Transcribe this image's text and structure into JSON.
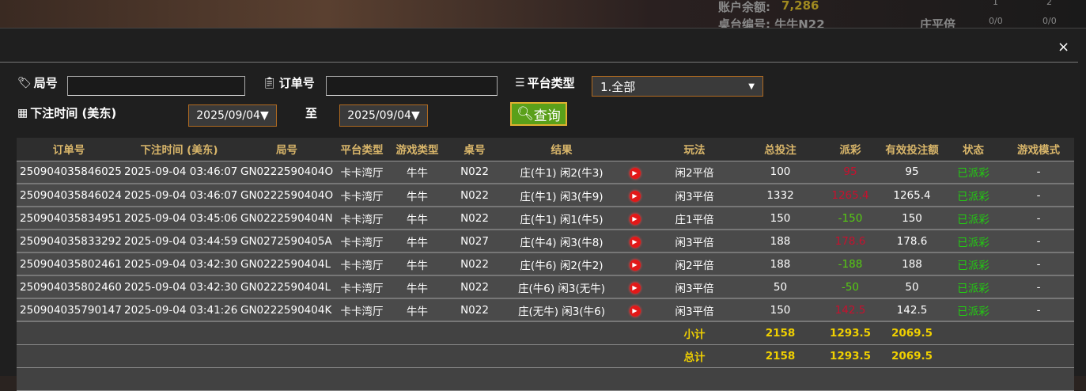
{
  "background": {
    "balance_label": "账户余额:",
    "balance": "7,286",
    "table_label": "桌台编号: 牛牛N22",
    "side_label": "庄平倍",
    "side_vals": [
      "0/0",
      "0/0"
    ],
    "col_nums": [
      "1",
      "2"
    ]
  },
  "modal": {
    "close": "×"
  },
  "filters": {
    "round_label": "局号",
    "round_value": "",
    "order_label": "订单号",
    "order_value": "",
    "platform_label": "平台类型",
    "platform_value": "1.全部",
    "time_label": "下注时间 (美东)",
    "date_from": "2025/09/04▼",
    "to_label": "至",
    "date_to": "2025/09/04▼",
    "query_label": "查询"
  },
  "table": {
    "headers": [
      "订单号",
      "下注时间 (美东)",
      "局号",
      "平台类型",
      "游戏类型",
      "桌号",
      "结果",
      "",
      "玩法",
      "总投注",
      "派彩",
      "有效投注额",
      "状态",
      "游戏模式"
    ],
    "rows": [
      {
        "order": "250904035846025",
        "time": "2025-09-04 03:46:07",
        "round": "GN0222590404O",
        "platform": "卡卡湾厅",
        "game": "牛牛",
        "table": "N022",
        "result": "庄(牛1) 闲2(牛3)",
        "play": "闲2平倍",
        "bet": "100",
        "payout": "95",
        "payout_color": "red",
        "valid": "95",
        "status": "已派彩",
        "mode": "-"
      },
      {
        "order": "250904035846024",
        "time": "2025-09-04 03:46:07",
        "round": "GN0222590404O",
        "platform": "卡卡湾厅",
        "game": "牛牛",
        "table": "N022",
        "result": "庄(牛1) 闲3(牛9)",
        "play": "闲3平倍",
        "bet": "1332",
        "payout": "1265.4",
        "payout_color": "red",
        "valid": "1265.4",
        "status": "已派彩",
        "mode": "-"
      },
      {
        "order": "250904035834951",
        "time": "2025-09-04 03:45:06",
        "round": "GN0222590404N",
        "platform": "卡卡湾厅",
        "game": "牛牛",
        "table": "N022",
        "result": "庄(牛1) 闲1(牛5)",
        "play": "庄1平倍",
        "bet": "150",
        "payout": "-150",
        "payout_color": "green",
        "valid": "150",
        "status": "已派彩",
        "mode": "-"
      },
      {
        "order": "250904035833292",
        "time": "2025-09-04 03:44:59",
        "round": "GN0272590405A",
        "platform": "卡卡湾厅",
        "game": "牛牛",
        "table": "N027",
        "result": "庄(牛4) 闲3(牛8)",
        "play": "闲3平倍",
        "bet": "188",
        "payout": "178.6",
        "payout_color": "red",
        "valid": "178.6",
        "status": "已派彩",
        "mode": "-"
      },
      {
        "order": "250904035802461",
        "time": "2025-09-04 03:42:30",
        "round": "GN0222590404L",
        "platform": "卡卡湾厅",
        "game": "牛牛",
        "table": "N022",
        "result": "庄(牛6) 闲2(牛2)",
        "play": "闲2平倍",
        "bet": "188",
        "payout": "-188",
        "payout_color": "green",
        "valid": "188",
        "status": "已派彩",
        "mode": "-"
      },
      {
        "order": "250904035802460",
        "time": "2025-09-04 03:42:30",
        "round": "GN0222590404L",
        "platform": "卡卡湾厅",
        "game": "牛牛",
        "table": "N022",
        "result": "庄(牛6) 闲3(无牛)",
        "play": "闲3平倍",
        "bet": "50",
        "payout": "-50",
        "payout_color": "green",
        "valid": "50",
        "status": "已派彩",
        "mode": "-"
      },
      {
        "order": "250904035790147",
        "time": "2025-09-04 03:41:26",
        "round": "GN0222590404K",
        "platform": "卡卡湾厅",
        "game": "牛牛",
        "table": "N022",
        "result": "庄(无牛) 闲3(牛6)",
        "play": "闲3平倍",
        "bet": "150",
        "payout": "142.5",
        "payout_color": "red",
        "valid": "142.5",
        "status": "已派彩",
        "mode": "-"
      }
    ],
    "subtotal": {
      "label": "小计",
      "bet": "2158",
      "payout": "1293.5",
      "valid": "2069.5"
    },
    "total": {
      "label": "总计",
      "bet": "2158",
      "payout": "1293.5",
      "valid": "2069.5"
    }
  }
}
